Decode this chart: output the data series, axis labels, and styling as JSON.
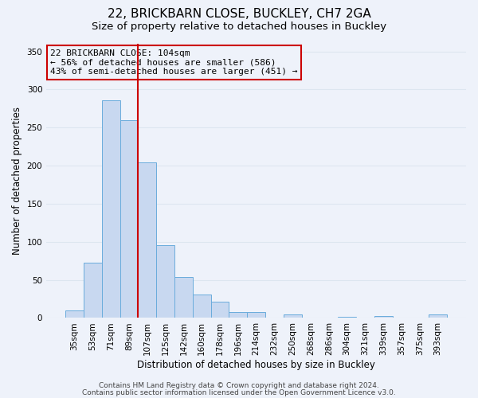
{
  "title": "22, BRICKBARN CLOSE, BUCKLEY, CH7 2GA",
  "subtitle": "Size of property relative to detached houses in Buckley",
  "xlabel": "Distribution of detached houses by size in Buckley",
  "ylabel": "Number of detached properties",
  "categories": [
    "35sqm",
    "53sqm",
    "71sqm",
    "89sqm",
    "107sqm",
    "125sqm",
    "142sqm",
    "160sqm",
    "178sqm",
    "196sqm",
    "214sqm",
    "232sqm",
    "250sqm",
    "268sqm",
    "286sqm",
    "304sqm",
    "321sqm",
    "339sqm",
    "357sqm",
    "375sqm",
    "393sqm"
  ],
  "values": [
    10,
    73,
    286,
    260,
    204,
    96,
    54,
    31,
    21,
    8,
    8,
    0,
    5,
    0,
    0,
    2,
    0,
    3,
    0,
    0,
    5
  ],
  "bar_color": "#c8d8f0",
  "bar_edge_color": "#6aacdc",
  "vline_color": "#cc0000",
  "vline_index": 3.5,
  "annotation_title": "22 BRICKBARN CLOSE: 104sqm",
  "annotation_line1": "← 56% of detached houses are smaller (586)",
  "annotation_line2": "43% of semi-detached houses are larger (451) →",
  "annotation_box_edgecolor": "#cc0000",
  "ylim": [
    0,
    360
  ],
  "yticks": [
    0,
    50,
    100,
    150,
    200,
    250,
    300,
    350
  ],
  "background_color": "#eef2fa",
  "grid_color": "#dde6f0",
  "title_fontsize": 11,
  "subtitle_fontsize": 9.5,
  "axis_label_fontsize": 8.5,
  "tick_fontsize": 7.5,
  "annotation_fontsize": 8,
  "footer_fontsize": 6.5
}
